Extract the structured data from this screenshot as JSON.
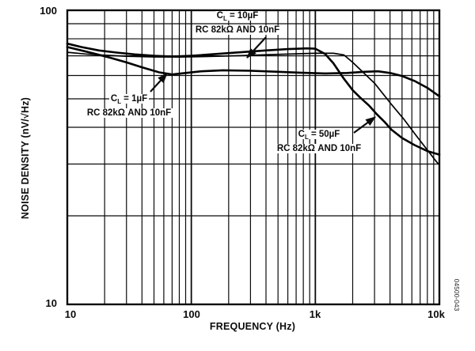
{
  "figure": {
    "code": "04500-043"
  },
  "chart_data": {
    "type": "line",
    "title": "",
    "xlabel": "FREQUENCY (Hz)",
    "ylabel": "NOISE DENSITY (nV/√Hz)",
    "x_scale": "log",
    "y_scale": "log",
    "xlim": [
      10,
      10000
    ],
    "ylim": [
      10,
      100
    ],
    "grid": "full log grid, solid black minor and major lines",
    "legend_position": "none (inline annotations with arrows)",
    "line_color": "#000000",
    "x_ticks": [
      {
        "value": 10,
        "label": "10"
      },
      {
        "value": 100,
        "label": "100"
      },
      {
        "value": 1000,
        "label": "1k"
      },
      {
        "value": 10000,
        "label": "10k"
      }
    ],
    "y_ticks": [
      {
        "value": 10,
        "label": "10"
      },
      {
        "value": 100,
        "label": "100"
      }
    ],
    "series": [
      {
        "name": "CL = 1µF, RC 82kΩ AND 10nF",
        "style": "thick",
        "points": [
          [
            10,
            75
          ],
          [
            13,
            73
          ],
          [
            17,
            71
          ],
          [
            22,
            69
          ],
          [
            30,
            66.5
          ],
          [
            40,
            64
          ],
          [
            55,
            61.5
          ],
          [
            70,
            60.5
          ],
          [
            90,
            61.2
          ],
          [
            120,
            62
          ],
          [
            180,
            62.5
          ],
          [
            300,
            62.3
          ],
          [
            500,
            61.8
          ],
          [
            800,
            61.3
          ],
          [
            1200,
            61
          ],
          [
            1800,
            61.2
          ],
          [
            2500,
            61.8
          ],
          [
            3200,
            62
          ],
          [
            4000,
            61.2
          ],
          [
            5000,
            59.8
          ],
          [
            6300,
            57.5
          ],
          [
            8000,
            54.5
          ],
          [
            10000,
            51
          ]
        ]
      },
      {
        "name": "CL = 10µF, RC 82kΩ AND 10nF",
        "style": "thin",
        "points": [
          [
            10,
            72
          ],
          [
            14,
            71
          ],
          [
            20,
            70.3
          ],
          [
            30,
            69.8
          ],
          [
            50,
            69.4
          ],
          [
            80,
            69.3
          ],
          [
            130,
            69.6
          ],
          [
            250,
            70.1
          ],
          [
            450,
            70.7
          ],
          [
            700,
            71.1
          ],
          [
            1000,
            71.4
          ],
          [
            1400,
            71.4
          ],
          [
            1700,
            70.5
          ],
          [
            2000,
            66.5
          ],
          [
            2200,
            64
          ],
          [
            3000,
            56.5
          ],
          [
            4000,
            48.5
          ],
          [
            5200,
            42.5
          ],
          [
            6500,
            37.5
          ],
          [
            8000,
            33.5
          ],
          [
            9500,
            30.5
          ],
          [
            10000,
            29.8
          ]
        ]
      },
      {
        "name": "CL = 50µF, RC 82kΩ AND 10nF",
        "style": "thick",
        "points": [
          [
            10,
            77
          ],
          [
            13,
            75
          ],
          [
            18,
            73
          ],
          [
            25,
            71.8
          ],
          [
            35,
            70.8
          ],
          [
            50,
            70
          ],
          [
            70,
            69.6
          ],
          [
            100,
            70
          ],
          [
            150,
            70.9
          ],
          [
            250,
            72
          ],
          [
            400,
            73
          ],
          [
            600,
            73.8
          ],
          [
            850,
            74.2
          ],
          [
            1000,
            74
          ],
          [
            1200,
            71
          ],
          [
            1400,
            66
          ],
          [
            1700,
            58.5
          ],
          [
            2000,
            53.5
          ],
          [
            2300,
            50.5
          ],
          [
            2700,
            47.5
          ],
          [
            3100,
            44.5
          ],
          [
            3600,
            41.8
          ],
          [
            4100,
            39.3
          ],
          [
            5000,
            36.8
          ],
          [
            6300,
            34.8
          ],
          [
            8000,
            33.2
          ],
          [
            10000,
            32.3
          ]
        ]
      }
    ],
    "annotations": [
      {
        "id": "cl-10uf",
        "line1_pre": "C",
        "line1_sub": "L",
        "line1_post": " = 10µF",
        "line2": "RC 82kΩ AND 10nF",
        "arrow_points_to": "10µF curve near 300Hz"
      },
      {
        "id": "cl-1uf",
        "line1_pre": "C",
        "line1_sub": "L",
        "line1_post": " = 1µF",
        "line2": "RC 82kΩ AND 10nF",
        "arrow_points_to": "1µF curve near 60Hz"
      },
      {
        "id": "cl-50uf",
        "line1_pre": "C",
        "line1_sub": "L",
        "line1_post": " = 50µF",
        "line2": "RC 82kΩ AND 10nF",
        "arrow_points_to": "50µF curve near 3kHz"
      }
    ]
  }
}
